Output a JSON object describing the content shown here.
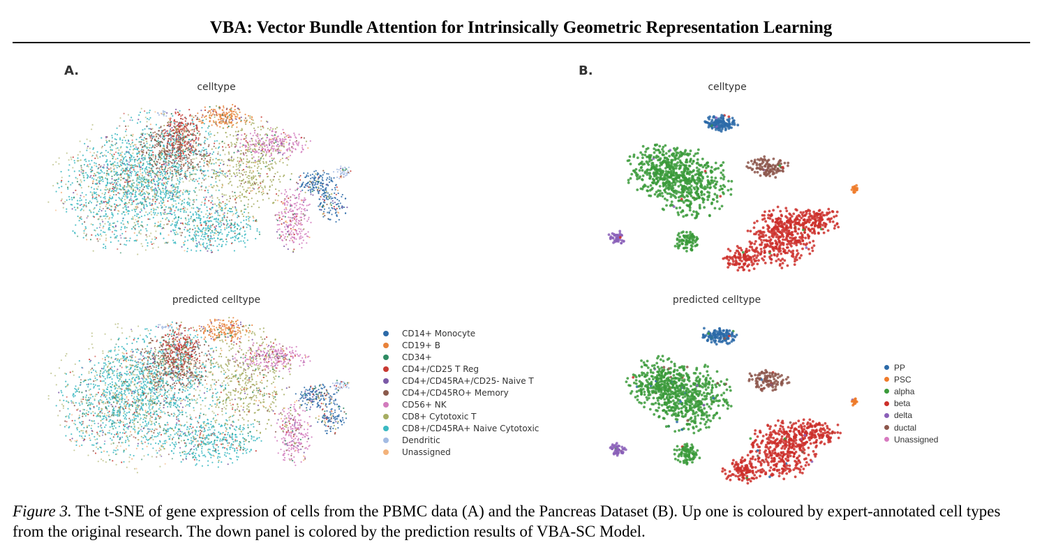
{
  "header": {
    "title": "VBA: Vector Bundle Attention for Intrinsically Geometric Representation Learning"
  },
  "figure": {
    "panel_a": {
      "label": "A.",
      "top_title": "celltype",
      "bottom_title": "predicted  celltype",
      "legend": [
        {
          "label": "CD14+ Monocyte",
          "color": "#2c6aa8"
        },
        {
          "label": "CD19+ B",
          "color": "#e8823a"
        },
        {
          "label": "CD34+",
          "color": "#2e8b63"
        },
        {
          "label": "CD4+/CD25 T Reg",
          "color": "#c83a32"
        },
        {
          "label": "CD4+/CD45RA+/CD25- Naive T",
          "color": "#7b59a6"
        },
        {
          "label": "CD4+/CD45RO+ Memory",
          "color": "#8b5a4c"
        },
        {
          "label": "CD56+ NK",
          "color": "#d27bbd"
        },
        {
          "label": "CD8+ Cytotoxic T",
          "color": "#a6ad62"
        },
        {
          "label": "CD8+/CD45RA+ Naive Cytotoxic",
          "color": "#3bb9c2"
        },
        {
          "label": "Dendritic",
          "color": "#a3bbe3"
        },
        {
          "label": "Unassigned",
          "color": "#f3b27a"
        }
      ]
    },
    "panel_b": {
      "label": "B.",
      "top_title": "celltype",
      "bottom_title": "predicted  celltype",
      "legend": [
        {
          "label": "PP",
          "color": "#2c6aa8"
        },
        {
          "label": "PSC",
          "color": "#ef7b2a"
        },
        {
          "label": "alpha",
          "color": "#3a9a3a"
        },
        {
          "label": "beta",
          "color": "#cc2f2a"
        },
        {
          "label": "delta",
          "color": "#8a5fb8"
        },
        {
          "label": "ductal",
          "color": "#8c564b"
        },
        {
          "label": "Unassigned",
          "color": "#d77ac0"
        }
      ]
    }
  },
  "caption": {
    "label": "Figure 3.",
    "text": "The t-SNE of gene expression of cells from the PBMC data (A) and the Pancreas Dataset (B). Up one is coloured by expert-annotated cell types from the original research. The down panel is colored by the prediction results of VBA-SC Model."
  }
}
